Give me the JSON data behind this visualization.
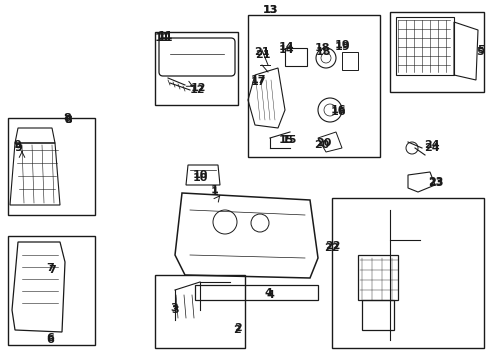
{
  "background_color": "#ffffff",
  "figsize": [
    4.89,
    3.6
  ],
  "dpi": 100
}
